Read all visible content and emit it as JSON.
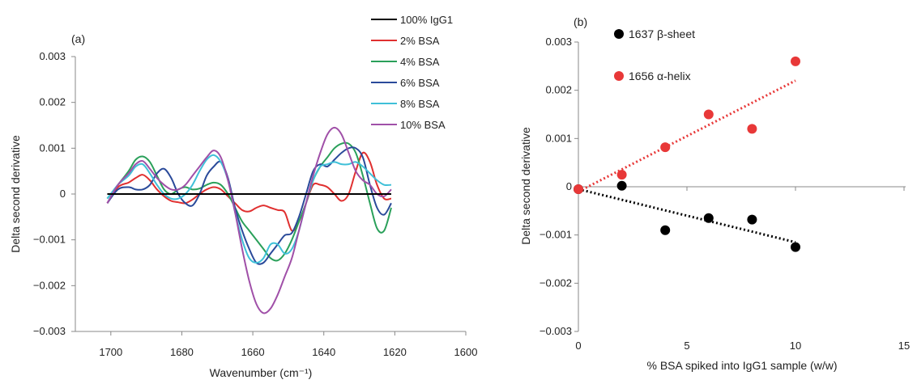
{
  "chart_data": [
    {
      "panel_label": "(a)",
      "type": "line",
      "xlabel": "Wavenumber (cm⁻¹)",
      "ylabel": "Delta second derivative",
      "xlim": [
        1710,
        1600
      ],
      "ylim": [
        -0.003,
        0.003
      ],
      "xticks": [
        1700,
        1680,
        1660,
        1640,
        1620,
        1600
      ],
      "xtick_labels": [
        "1700",
        "1680",
        "1660",
        "1640",
        "1620",
        "1600"
      ],
      "yticks": [
        0.003,
        0.002,
        0.001,
        0,
        -0.001,
        -0.002,
        -0.003
      ],
      "ytick_labels": [
        "0.003",
        "0.002",
        "0.001",
        "0",
        "−0.001",
        "−0.002",
        "−0.003"
      ],
      "series": [
        {
          "name": "100% IgG1",
          "color": "#000000",
          "x": [
            1701,
            1621
          ],
          "y": [
            0,
            0
          ]
        },
        {
          "name": "2% BSA",
          "color": "#e03030",
          "x": [
            1701,
            1698,
            1695,
            1693,
            1691,
            1689,
            1687,
            1685,
            1683,
            1681,
            1679,
            1677,
            1675,
            1673,
            1671,
            1669,
            1667,
            1665,
            1663,
            1661,
            1659,
            1657,
            1655,
            1653,
            1651,
            1649,
            1647,
            1645,
            1643,
            1641,
            1639,
            1637,
            1635,
            1633,
            1631,
            1629,
            1627,
            1625,
            1623,
            1621
          ],
          "y": [
            -0.0002,
            0.00015,
            0.00025,
            0.00035,
            0.00042,
            0.0003,
            0.0001,
            -5e-05,
            -0.00015,
            -0.00018,
            -0.0002,
            -0.00012,
            0.0,
            0.0001,
            0.00015,
            0.0001,
            -5e-05,
            -0.0002,
            -0.00035,
            -0.00038,
            -0.0003,
            -0.00025,
            -0.0003,
            -0.00035,
            -0.0004,
            -0.0008,
            -0.0006,
            -0.0002,
            0.0002,
            0.0002,
            0.00015,
            0.0,
            -0.00015,
            0.0,
            0.0005,
            0.0009,
            0.0007,
            0.0002,
            -0.0001,
            -0.0001
          ]
        },
        {
          "name": "4% BSA",
          "color": "#2aa05a",
          "x": [
            1701,
            1698,
            1695,
            1693,
            1691,
            1689,
            1687,
            1685,
            1683,
            1681,
            1679,
            1677,
            1675,
            1673,
            1671,
            1669,
            1667,
            1665,
            1663,
            1661,
            1659,
            1657,
            1655,
            1653,
            1651,
            1649,
            1647,
            1645,
            1643,
            1641,
            1639,
            1637,
            1635,
            1633,
            1631,
            1629,
            1627,
            1625,
            1623,
            1621
          ],
          "y": [
            -0.0001,
            0.0002,
            0.0005,
            0.00075,
            0.00082,
            0.0007,
            0.0004,
            0.0001,
            0.0,
            0.0001,
            0.00015,
            0.0001,
            0.00012,
            0.0002,
            0.00025,
            0.0002,
            0.0,
            -0.0003,
            -0.0006,
            -0.0008,
            -0.001,
            -0.0012,
            -0.0014,
            -0.00145,
            -0.0013,
            -0.001,
            -0.0006,
            -0.0002,
            0.0003,
            0.0006,
            0.0008,
            0.001,
            0.0011,
            0.0011,
            0.0009,
            0.0004,
            -0.0002,
            -0.00075,
            -0.0008,
            -0.0003
          ]
        },
        {
          "name": "6% BSA",
          "color": "#2a4a9a",
          "x": [
            1701,
            1698,
            1695,
            1693,
            1691,
            1689,
            1687,
            1685,
            1683,
            1681,
            1679,
            1677,
            1675,
            1673,
            1671,
            1669,
            1667,
            1665,
            1663,
            1661,
            1659,
            1657,
            1655,
            1653,
            1651,
            1649,
            1647,
            1645,
            1643,
            1641,
            1639,
            1637,
            1635,
            1633,
            1631,
            1629,
            1627,
            1625,
            1623,
            1621
          ],
          "y": [
            -0.0002,
            0.0001,
            0.00015,
            0.0001,
            0.0001,
            0.0002,
            0.00045,
            0.00055,
            0.00035,
            0.0,
            -0.0002,
            -0.00025,
            0.0,
            0.0004,
            0.0006,
            0.0007,
            0.00035,
            -0.0003,
            -0.0008,
            -0.0012,
            -0.0015,
            -0.0015,
            -0.0013,
            -0.0011,
            -0.0009,
            -0.00085,
            -0.0005,
            0.0,
            0.0005,
            0.00065,
            0.0006,
            0.00075,
            0.0009,
            0.001,
            0.001,
            0.0008,
            0.0002,
            -0.0003,
            -0.00045,
            -0.0002
          ]
        },
        {
          "name": "8% BSA",
          "color": "#3fc0d8",
          "x": [
            1701,
            1698,
            1695,
            1693,
            1691,
            1689,
            1687,
            1685,
            1683,
            1681,
            1679,
            1677,
            1675,
            1673,
            1671,
            1669,
            1667,
            1665,
            1663,
            1661,
            1659,
            1657,
            1655,
            1653,
            1651,
            1649,
            1647,
            1645,
            1643,
            1641,
            1639,
            1637,
            1635,
            1633,
            1631,
            1629,
            1627,
            1625,
            1623,
            1621
          ],
          "y": [
            -0.0001,
            0.0002,
            0.0004,
            0.0006,
            0.00065,
            0.00045,
            0.0002,
            0.0,
            -0.0001,
            -0.0001,
            0.0,
            0.0002,
            0.0005,
            0.00075,
            0.00085,
            0.0007,
            0.0003,
            -0.0004,
            -0.001,
            -0.0014,
            -0.0015,
            -0.0014,
            -0.0011,
            -0.0011,
            -0.0013,
            -0.0012,
            -0.0008,
            -0.0002,
            0.0003,
            0.0006,
            0.00065,
            0.0007,
            0.00065,
            0.00065,
            0.0007,
            0.0006,
            0.00045,
            0.0003,
            0.0002,
            0.0002
          ]
        },
        {
          "name": "10% BSA",
          "color": "#a050a8",
          "x": [
            1701,
            1698,
            1695,
            1693,
            1691,
            1689,
            1687,
            1685,
            1683,
            1681,
            1679,
            1677,
            1675,
            1673,
            1671,
            1669,
            1667,
            1665,
            1663,
            1661,
            1659,
            1657,
            1655,
            1653,
            1651,
            1649,
            1647,
            1645,
            1643,
            1641,
            1639,
            1637,
            1635,
            1633,
            1631,
            1629,
            1627,
            1625,
            1623,
            1621
          ],
          "y": [
            -0.0002,
            0.0002,
            0.00045,
            0.00065,
            0.00072,
            0.00055,
            0.00035,
            0.0002,
            0.0001,
            0.0001,
            0.0002,
            0.0004,
            0.0006,
            0.0008,
            0.00095,
            0.0008,
            0.0003,
            -0.0004,
            -0.0012,
            -0.0019,
            -0.0024,
            -0.0026,
            -0.0025,
            -0.0022,
            -0.0018,
            -0.0014,
            -0.0008,
            -0.0002,
            0.0004,
            0.0009,
            0.0013,
            0.00145,
            0.0013,
            0.0009,
            0.0005,
            0.0003,
            0.0002,
            0.0,
            -5e-05,
            0.0001
          ]
        }
      ]
    },
    {
      "panel_label": "(b)",
      "type": "scatter",
      "xlabel": "% BSA spiked into IgG1 sample (w/w)",
      "ylabel": "Delta second derivative",
      "xlim": [
        0,
        15
      ],
      "ylim": [
        -0.003,
        0.003
      ],
      "xticks": [
        0,
        5,
        10,
        15
      ],
      "xtick_labels": [
        "0",
        "5",
        "10",
        "15"
      ],
      "yticks": [
        0.003,
        0.002,
        0.001,
        0,
        -0.001,
        -0.002,
        -0.003
      ],
      "ytick_labels": [
        "0.003",
        "0.002",
        "0.001",
        "0",
        "−0.001",
        "−0.002",
        "−0.003"
      ],
      "series": [
        {
          "name": "1637 β-sheet",
          "color": "#000000",
          "x": [
            0,
            2,
            4,
            6,
            8,
            10
          ],
          "y": [
            -5e-05,
            2e-05,
            -0.0009,
            -0.00065,
            -0.00068,
            -0.00125
          ],
          "trendline": {
            "x": [
              0,
              10
            ],
            "y": [
              -5e-05,
              -0.00115
            ],
            "style": "dotted"
          }
        },
        {
          "name": "1656 α-helix",
          "color": "#e83838",
          "x": [
            0,
            2,
            4,
            6,
            8,
            10
          ],
          "y": [
            -5e-05,
            0.00025,
            0.00082,
            0.0015,
            0.0012,
            0.0026
          ],
          "trendline": {
            "x": [
              0,
              10
            ],
            "y": [
              -0.0001,
              0.0022
            ],
            "style": "dotted"
          }
        }
      ]
    }
  ]
}
